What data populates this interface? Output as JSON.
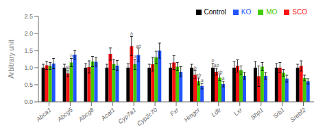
{
  "chart_data": {
    "type": "bar",
    "categories": [
      "Abca1",
      "Abcg5",
      "Abcg8",
      "Acat1",
      "Cyp7a1",
      "Cyp2c70",
      "Fxr",
      "Hmgcr",
      "Ldlr",
      "Lxr",
      "Shp1",
      "Srb1",
      "Srebf2"
    ],
    "series": [
      {
        "name": "Control",
        "color": "#000000",
        "values": [
          1.0,
          1.0,
          1.0,
          1.0,
          1.0,
          1.0,
          1.0,
          1.0,
          1.0,
          1.0,
          1.0,
          1.0,
          1.0
        ],
        "errors": [
          0.1,
          0.1,
          0.12,
          0.1,
          0.12,
          0.1,
          0.12,
          0.1,
          0.12,
          0.18,
          0.18,
          0.12,
          0.1
        ],
        "annotations": [
          null,
          null,
          null,
          null,
          null,
          null,
          null,
          null,
          "b",
          null,
          null,
          null,
          null
        ]
      },
      {
        "name": "SCO",
        "color": "#ff1111",
        "values": [
          1.07,
          0.83,
          1.02,
          1.4,
          1.63,
          1.1,
          1.15,
          0.79,
          0.88,
          1.05,
          0.75,
          1.0,
          1.05
        ],
        "errors": [
          0.12,
          0.1,
          0.18,
          0.18,
          0.28,
          0.2,
          0.2,
          0.12,
          0.1,
          0.18,
          0.3,
          0.15,
          0.15
        ],
        "annotations": [
          null,
          "ab",
          null,
          null,
          "b",
          null,
          null,
          "b",
          "ab",
          null,
          null,
          null,
          null
        ]
      },
      {
        "name": "MO",
        "color": "#44cc00",
        "values": [
          1.05,
          1.15,
          1.18,
          1.1,
          1.1,
          1.3,
          1.03,
          0.6,
          0.71,
          0.93,
          1.03,
          0.85,
          0.7
        ],
        "errors": [
          0.1,
          0.12,
          0.15,
          0.15,
          0.15,
          0.18,
          0.12,
          0.1,
          0.08,
          0.12,
          0.12,
          0.1,
          0.08
        ],
        "annotations": [
          null,
          "b",
          null,
          null,
          "a",
          null,
          null,
          "ab",
          "ab",
          null,
          null,
          null,
          null
        ]
      },
      {
        "name": "KO",
        "color": "#2255ff",
        "values": [
          1.12,
          1.38,
          1.17,
          1.06,
          1.37,
          1.5,
          0.88,
          0.46,
          0.52,
          0.76,
          0.76,
          0.68,
          0.6
        ],
        "errors": [
          0.15,
          0.13,
          0.13,
          0.15,
          0.18,
          0.22,
          0.15,
          0.08,
          0.08,
          0.1,
          0.1,
          0.1,
          0.08
        ],
        "annotations": [
          null,
          null,
          null,
          null,
          "ab",
          null,
          null,
          "a",
          "a",
          null,
          null,
          null,
          null
        ]
      }
    ],
    "ylabel": "Arbitrary unit",
    "ylim": [
      0.0,
      2.5
    ],
    "yticks": [
      {
        "value": 0.0,
        "label": "0.0"
      },
      {
        "value": 0.5,
        "label": "0.5"
      },
      {
        "value": 1.0,
        "label": "1.0"
      },
      {
        "value": 1.5,
        "label": "1.5"
      },
      {
        "value": 2.0,
        "label": "2.0"
      },
      {
        "value": 2.5,
        "label": "2.5"
      }
    ],
    "grid": false,
    "legend": "upper right"
  }
}
